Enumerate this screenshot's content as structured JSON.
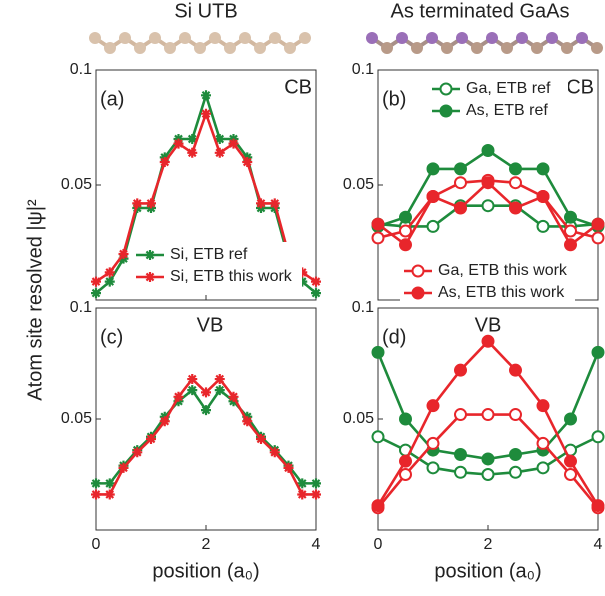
{
  "chart_data": [
    {
      "type": "line",
      "title": "Si UTB",
      "ylabel": "Atom site resolved |ψ|²",
      "annotations": [
        "(a)",
        "CB"
      ],
      "x": [
        0,
        0.25,
        0.5,
        0.75,
        1,
        1.25,
        1.5,
        1.75,
        2,
        2.25,
        2.5,
        2.75,
        3,
        3.25,
        3.5,
        3.75,
        4
      ],
      "series": [
        {
          "name": "Si, ETB ref",
          "color": "#1e8b3c",
          "marker": "star",
          "values": [
            0.003,
            0.008,
            0.018,
            0.04,
            0.04,
            0.062,
            0.07,
            0.07,
            0.089,
            0.07,
            0.07,
            0.062,
            0.04,
            0.04,
            0.018,
            0.008,
            0.003
          ]
        },
        {
          "name": "Si, ETB this work",
          "color": "#e8262b",
          "marker": "star",
          "values": [
            0.008,
            0.012,
            0.02,
            0.042,
            0.042,
            0.06,
            0.068,
            0.064,
            0.081,
            0.064,
            0.068,
            0.06,
            0.042,
            0.042,
            0.02,
            0.012,
            0.008
          ]
        }
      ],
      "xlim": [
        0,
        4
      ],
      "xticks": [
        0,
        2,
        4
      ],
      "ylim": [
        0,
        0.1
      ],
      "yticks": [
        0.05,
        0.1
      ],
      "legend": "lower center"
    },
    {
      "type": "line",
      "title": "As terminated GaAs",
      "annotations": [
        "(b)",
        "CB"
      ],
      "x": [
        0,
        0.5,
        1,
        1.5,
        2,
        2.5,
        3,
        3.5,
        4
      ],
      "series": [
        {
          "name": "Ga, ETB ref",
          "color": "#1e8b3c",
          "marker": "circle-open",
          "values": [
            0.033,
            0.032,
            0.032,
            0.041,
            0.041,
            0.041,
            0.032,
            0.032,
            0.033
          ]
        },
        {
          "name": "As, ETB ref",
          "color": "#1e8b3c",
          "marker": "circle",
          "values": [
            0.032,
            0.036,
            0.057,
            0.057,
            0.065,
            0.057,
            0.057,
            0.036,
            0.032
          ]
        },
        {
          "name": "Ga, ETB this work",
          "color": "#e8262b",
          "marker": "circle-open",
          "values": [
            0.027,
            0.03,
            0.045,
            0.051,
            0.052,
            0.051,
            0.045,
            0.03,
            0.027
          ]
        },
        {
          "name": "As, ETB this work",
          "color": "#e8262b",
          "marker": "circle",
          "values": [
            0.033,
            0.024,
            0.045,
            0.04,
            0.051,
            0.04,
            0.045,
            0.024,
            0.033
          ]
        }
      ],
      "xlim": [
        0,
        4
      ],
      "xticks": [
        0,
        2,
        4
      ],
      "ylim": [
        0,
        0.1
      ],
      "yticks": [
        0.05,
        0.1
      ],
      "legend": "split"
    },
    {
      "type": "line",
      "xlabel": "position (a₀)",
      "annotations": [
        "(c)",
        "VB"
      ],
      "x": [
        0,
        0.25,
        0.5,
        0.75,
        1,
        1.25,
        1.5,
        1.75,
        2,
        2.25,
        2.5,
        2.75,
        3,
        3.25,
        3.5,
        3.75,
        4
      ],
      "series": [
        {
          "name": "Si, ETB ref",
          "color": "#1e8b3c",
          "marker": "star",
          "values": [
            0.021,
            0.021,
            0.029,
            0.036,
            0.042,
            0.051,
            0.058,
            0.063,
            0.054,
            0.063,
            0.058,
            0.051,
            0.042,
            0.036,
            0.029,
            0.021,
            0.021
          ]
        },
        {
          "name": "Si, ETB this work",
          "color": "#e8262b",
          "marker": "star",
          "values": [
            0.016,
            0.016,
            0.028,
            0.035,
            0.041,
            0.049,
            0.06,
            0.068,
            0.062,
            0.068,
            0.06,
            0.049,
            0.041,
            0.035,
            0.028,
            0.016,
            0.016
          ]
        }
      ],
      "xlim": [
        0,
        4
      ],
      "xticks": [
        0,
        2,
        4
      ],
      "ylim": [
        0,
        0.1
      ],
      "yticks": [
        0.05,
        0.1
      ]
    },
    {
      "type": "line",
      "xlabel": "position (a₀)",
      "annotations": [
        "(d)",
        "VB"
      ],
      "x": [
        0,
        0.5,
        1,
        1.5,
        2,
        2.5,
        3,
        3.5,
        4
      ],
      "series": [
        {
          "name": "Ga, ETB ref",
          "color": "#1e8b3c",
          "marker": "circle-open",
          "values": [
            0.042,
            0.036,
            0.028,
            0.026,
            0.025,
            0.026,
            0.028,
            0.036,
            0.042
          ]
        },
        {
          "name": "As, ETB ref",
          "color": "#1e8b3c",
          "marker": "circle",
          "values": [
            0.08,
            0.05,
            0.036,
            0.034,
            0.032,
            0.034,
            0.036,
            0.05,
            0.08
          ]
        },
        {
          "name": "Ga, ETB this work",
          "color": "#e8262b",
          "marker": "circle-open",
          "values": [
            0.01,
            0.025,
            0.039,
            0.052,
            0.052,
            0.052,
            0.039,
            0.025,
            0.01
          ]
        },
        {
          "name": "As, ETB this work",
          "color": "#e8262b",
          "marker": "circle",
          "values": [
            0.011,
            0.031,
            0.056,
            0.072,
            0.085,
            0.072,
            0.056,
            0.031,
            0.011
          ]
        }
      ],
      "xlim": [
        0,
        4
      ],
      "xticks": [
        0,
        2,
        4
      ],
      "ylim": [
        0,
        0.1
      ],
      "yticks": [
        0.05,
        0.1
      ]
    }
  ]
}
